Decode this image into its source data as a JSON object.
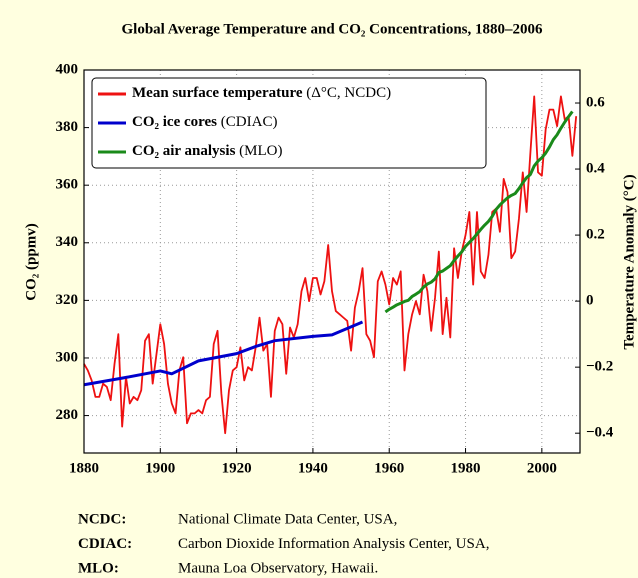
{
  "chart_data": {
    "type": "line",
    "title": "Global Average Temperature and CO₂ Concentrations, 1880–2006",
    "ylabel": "CO₂ (ppmv)",
    "y2label": "Temperature Anomaly (°C)",
    "xlim": [
      1880,
      2010
    ],
    "xticks": [
      1880,
      1900,
      1920,
      1940,
      1960,
      1980,
      2000
    ],
    "ylim": [
      267,
      400
    ],
    "yticks": [
      280,
      300,
      320,
      340,
      360,
      380,
      400
    ],
    "y2lim": [
      -0.46,
      0.7
    ],
    "y2ticks": [
      {
        "value": -0.4,
        "label": "−0.4"
      },
      {
        "value": -0.2,
        "label": "−0.2"
      },
      0,
      0.2,
      0.4,
      0.6
    ],
    "grid": true,
    "legend": "upper left",
    "series": [
      {
        "name": "Mean surface temperature (Δ°C, NCDC)",
        "color": "#ee1111",
        "axis": "y2",
        "x": [
          1880,
          1881,
          1882,
          1883,
          1884,
          1885,
          1886,
          1887,
          1888,
          1889,
          1890,
          1891,
          1892,
          1893,
          1894,
          1895,
          1896,
          1897,
          1898,
          1899,
          1900,
          1901,
          1902,
          1903,
          1904,
          1905,
          1906,
          1907,
          1908,
          1909,
          1910,
          1911,
          1912,
          1913,
          1914,
          1915,
          1916,
          1917,
          1918,
          1919,
          1920,
          1921,
          1922,
          1923,
          1924,
          1925,
          1926,
          1927,
          1928,
          1929,
          1930,
          1931,
          1932,
          1933,
          1934,
          1935,
          1936,
          1937,
          1938,
          1939,
          1940,
          1941,
          1942,
          1943,
          1944,
          1945,
          1946,
          1947,
          1948,
          1949,
          1950,
          1951,
          1952,
          1953,
          1954,
          1955,
          1956,
          1957,
          1958,
          1959,
          1960,
          1961,
          1962,
          1963,
          1964,
          1965,
          1966,
          1967,
          1968,
          1969,
          1970,
          1971,
          1972,
          1973,
          1974,
          1975,
          1976,
          1977,
          1978,
          1979,
          1980,
          1981,
          1982,
          1983,
          1984,
          1985,
          1986,
          1987,
          1988,
          1989,
          1990,
          1991,
          1992,
          1993,
          1994,
          1995,
          1996,
          1997,
          1998,
          1999,
          2000,
          2001,
          2002,
          2003,
          2004,
          2005,
          2006,
          2007,
          2008,
          2009
        ],
        "values": [
          -0.19,
          -0.21,
          -0.24,
          -0.29,
          -0.29,
          -0.25,
          -0.26,
          -0.3,
          -0.19,
          -0.1,
          -0.38,
          -0.23,
          -0.31,
          -0.29,
          -0.3,
          -0.27,
          -0.12,
          -0.1,
          -0.25,
          -0.16,
          -0.07,
          -0.13,
          -0.25,
          -0.31,
          -0.34,
          -0.21,
          -0.17,
          -0.37,
          -0.34,
          -0.34,
          -0.33,
          -0.34,
          -0.3,
          -0.29,
          -0.13,
          -0.09,
          -0.28,
          -0.4,
          -0.27,
          -0.21,
          -0.2,
          -0.14,
          -0.24,
          -0.2,
          -0.21,
          -0.14,
          -0.05,
          -0.15,
          -0.13,
          -0.29,
          -0.09,
          -0.05,
          -0.07,
          -0.22,
          -0.08,
          -0.11,
          -0.07,
          0.03,
          0.07,
          0.0,
          0.07,
          0.07,
          0.02,
          0.06,
          0.17,
          0.03,
          -0.03,
          -0.04,
          -0.05,
          -0.06,
          -0.15,
          -0.02,
          0.03,
          0.1,
          -0.1,
          -0.12,
          -0.17,
          0.06,
          0.09,
          0.05,
          -0.01,
          0.07,
          0.05,
          0.09,
          -0.21,
          -0.1,
          -0.04,
          0.0,
          -0.04,
          0.08,
          0.03,
          -0.09,
          0.01,
          0.15,
          -0.1,
          0.01,
          -0.11,
          0.16,
          0.07,
          0.15,
          0.2,
          0.27,
          0.05,
          0.27,
          0.09,
          0.07,
          0.14,
          0.27,
          0.28,
          0.21,
          0.37,
          0.33,
          0.13,
          0.15,
          0.25,
          0.39,
          0.27,
          0.45,
          0.62,
          0.39,
          0.38,
          0.52,
          0.58,
          0.58,
          0.53,
          0.62,
          0.55,
          0.56,
          0.44,
          0.56
        ]
      },
      {
        "name": "CO₂ ice cores (CDIAC)",
        "color": "#0000cc",
        "x": [
          1880,
          1890,
          1900,
          1903,
          1910,
          1920,
          1925,
          1930,
          1940,
          1945,
          1953
        ],
        "values": [
          290.7,
          293,
          295.5,
          294.5,
          299,
          301.5,
          304,
          306,
          307.5,
          308,
          312.5
        ]
      },
      {
        "name": "CO₂ air analysis (MLO)",
        "color": "#1a8a1a",
        "x": [
          1959,
          1960,
          1961,
          1962,
          1963,
          1964,
          1965,
          1966,
          1967,
          1968,
          1969,
          1970,
          1971,
          1972,
          1973,
          1974,
          1975,
          1976,
          1977,
          1978,
          1979,
          1980,
          1981,
          1982,
          1983,
          1984,
          1985,
          1986,
          1987,
          1988,
          1989,
          1990,
          1991,
          1992,
          1993,
          1994,
          1995,
          1996,
          1997,
          1998,
          1999,
          2000,
          2001,
          2002,
          2003,
          2004,
          2005,
          2006,
          2007,
          2008
        ],
        "values": [
          315.98,
          316.91,
          317.64,
          318.45,
          318.99,
          319.62,
          320.04,
          321.38,
          322.16,
          323.04,
          324.62,
          325.68,
          326.32,
          327.45,
          329.68,
          330.18,
          331.11,
          332.04,
          333.83,
          335.4,
          336.84,
          338.75,
          340.11,
          341.45,
          343.05,
          344.65,
          346.12,
          347.42,
          349.19,
          351.57,
          353.12,
          354.39,
          355.61,
          356.45,
          357.1,
          358.83,
          360.82,
          362.61,
          363.73,
          366.7,
          368.38,
          369.55,
          371.14,
          373.28,
          375.8,
          377.52,
          379.8,
          381.9,
          383.79,
          385.6
        ]
      }
    ]
  },
  "footnotes": [
    {
      "term": "NCDC:",
      "text": "National Climate Data Center, USA,"
    },
    {
      "term": "CDIAC:",
      "text": "Carbon Dioxide Information Analysis Center, USA,"
    },
    {
      "term": "MLO:",
      "text": "Mauna Loa Observatory, Hawaii."
    }
  ]
}
